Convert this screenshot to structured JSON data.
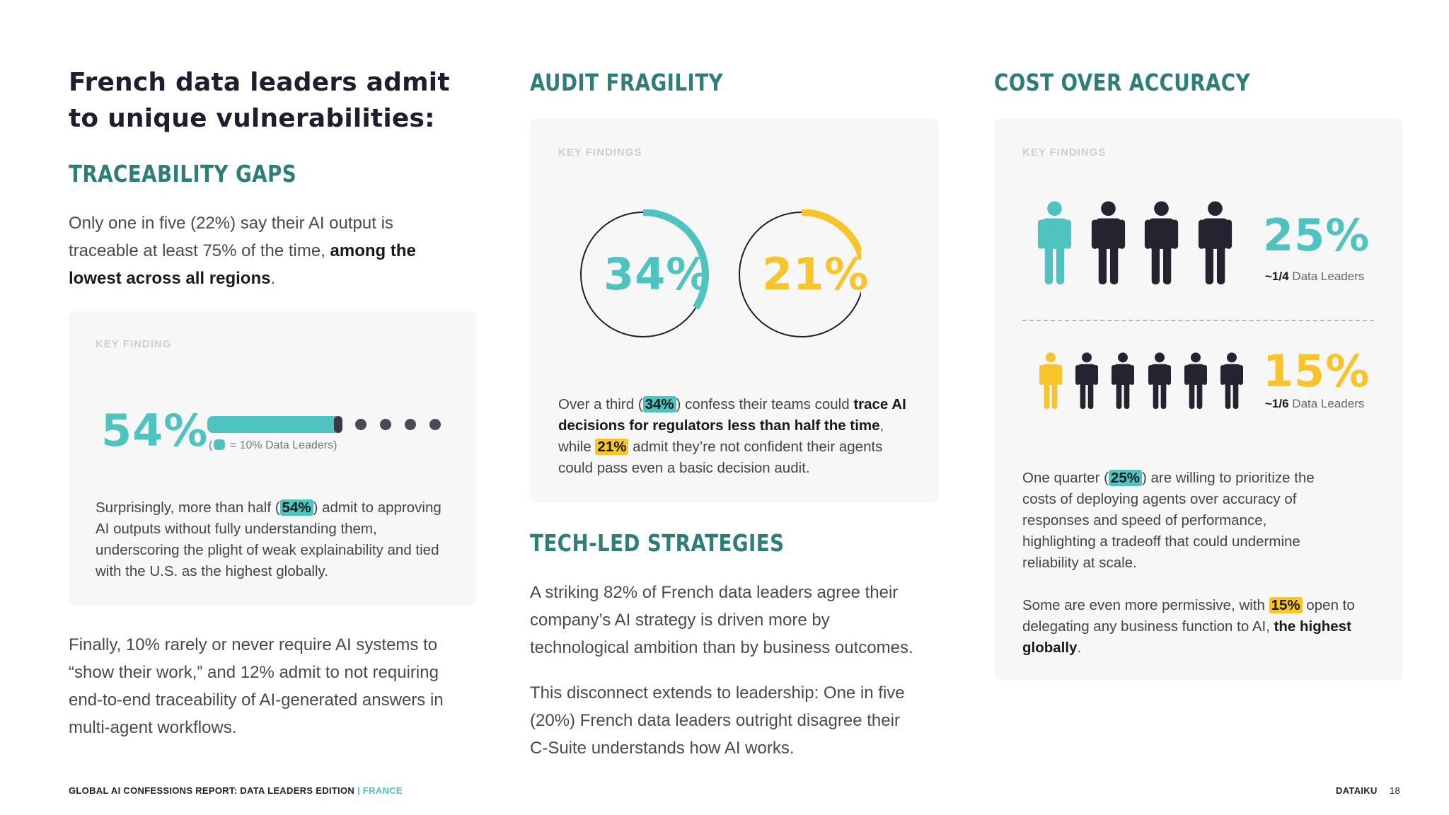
{
  "header": {
    "title": "French data leaders admit to unique vulnerabilities:",
    "audit_heading": "AUDIT FRAGILITY",
    "cost_heading": "COST OVER ACCURACY"
  },
  "traceability": {
    "heading": "TRACEABILITY GAPS",
    "intro_text": "Only one in five (22%) say their AI output is traceable at least 75% of the time, ",
    "intro_bold": "among the lowest across all regions",
    "intro_end": ".",
    "card": {
      "label": "KEY FINDING",
      "stat": "54%",
      "legend_open": "(",
      "legend_text": " = 10% Data Leaders)",
      "progress_value": 54,
      "desc_1": "Surprisingly, more than half (",
      "desc_hl": "54%",
      "desc_2": ") admit to approving AI outputs without fully understanding them, underscoring the plight of weak explainability and tied with the U.S. as the highest globally."
    },
    "final_text": "Finally, 10% rarely or never require AI systems to “show their work,” and 12% admit to not requiring end-to-end traceability of AI-generated answers in multi-agent workflows."
  },
  "audit": {
    "label": "KEY FINDINGS",
    "stat_a": "34%",
    "stat_b": "21%",
    "value_a": 34,
    "value_b": 21,
    "desc_1": "Over a third (",
    "desc_hl_a": "34%",
    "desc_2": ") confess their teams could ",
    "desc_bold": "trace AI decisions for regulators less than half the time",
    "desc_3": ", while ",
    "desc_hl_b": "21%",
    "desc_4": " admit they’re not confident their agents could pass even a basic decision audit."
  },
  "tech": {
    "heading": "TECH-LED STRATEGIES",
    "para_1": "A striking 82% of French data leaders agree their company’s AI strategy is driven more by technological ambition than by business outcomes.",
    "para_2": "This disconnect extends to leadership: One in five (20%) French data leaders outright disagree their C-Suite understands how AI works."
  },
  "cost": {
    "label": "KEY FINDINGS",
    "stat_a": "25%",
    "sub_a_bold": "~1/4",
    "sub_a": " Data Leaders",
    "stat_b": "15%",
    "sub_b_bold": "~1/6",
    "sub_b": " Data Leaders",
    "desc_1": "One quarter (",
    "desc_hl_a": "25%",
    "desc_2": ") are willing to prioritize the costs of deploying agents over accuracy of responses and speed of performance, highlighting a tradeoff that could undermine reliability at scale.",
    "desc_3": "Some are even more permissive, with ",
    "desc_hl_b": "15%",
    "desc_4": " open to delegating any business function to AI, ",
    "desc_bold": "the highest globally",
    "desc_5": "."
  },
  "footer": {
    "report": "GLOBAL AI CONFESSIONS REPORT: DATA LEADERS EDITION",
    "sep": " | ",
    "country": "FRANCE",
    "brand": "DATAIKU",
    "page": "18"
  },
  "colors": {
    "teal": "#4fc3c0",
    "yellow": "#f7c42c",
    "dark": "#252330",
    "heading": "#2f7d78"
  },
  "icons": [
    "person-icon"
  ]
}
